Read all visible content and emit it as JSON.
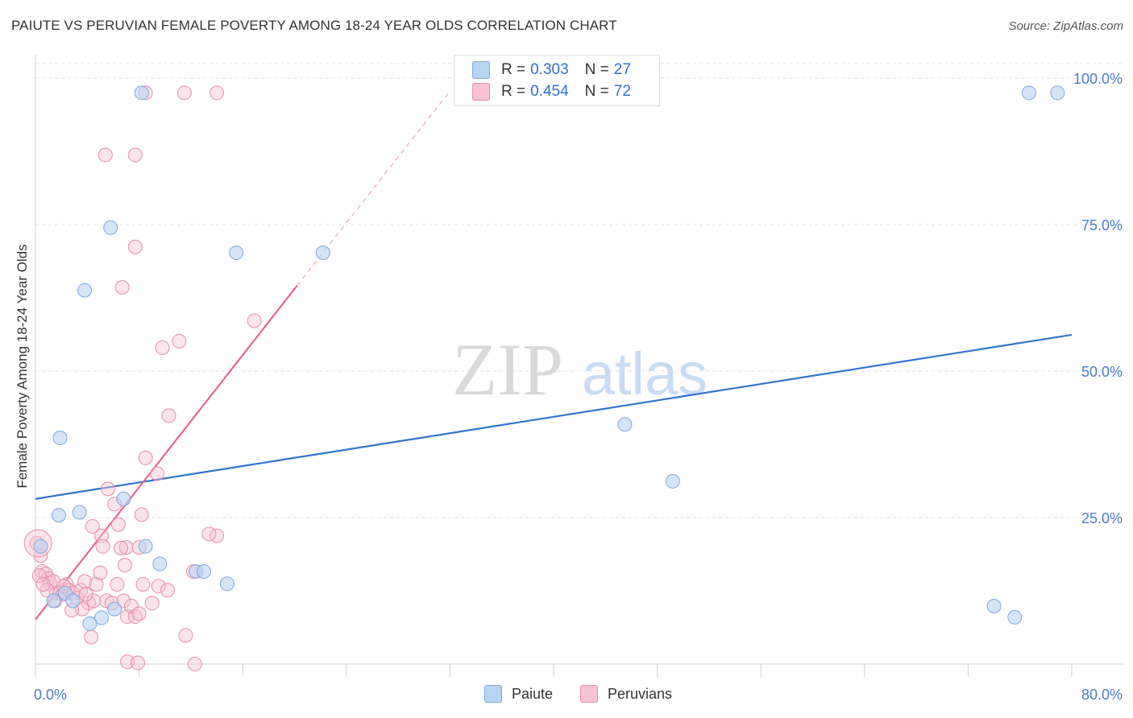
{
  "header": {
    "title": "PAIUTE VS PERUVIAN FEMALE POVERTY AMONG 18-24 YEAR OLDS CORRELATION CHART",
    "source": "Source: ZipAtlas.com"
  },
  "watermark": {
    "part1": "ZIP",
    "part2": "atlas"
  },
  "legend": {
    "rows": [
      {
        "r_label": "R =",
        "r_value": "0.303",
        "n_label": "N =",
        "n_value": "27"
      },
      {
        "r_label": "R =",
        "r_value": "0.454",
        "n_label": "N =",
        "n_value": "72"
      }
    ],
    "bottom": [
      "Paiute",
      "Peruvians"
    ]
  },
  "colors": {
    "paiute_fill": "#b8d4f5",
    "paiute_stroke": "#7fa8db",
    "paiute_line": "#2f74d0",
    "peruvian_fill": "#f7c3d3",
    "peruvian_stroke": "#e68daa",
    "peruvian_line": "#e5658f",
    "tick_text": "#4a7cc7"
  },
  "chart_data": {
    "type": "scatter",
    "title": "PAIUTE VS PERUVIAN FEMALE POVERTY AMONG 18-24 YEAR OLDS CORRELATION CHART",
    "xlabel": "",
    "ylabel": "Female Poverty Among 18-24 Year Olds",
    "xlim": [
      0,
      80
    ],
    "ylim": [
      0,
      104
    ],
    "x_tick_labels": [
      {
        "value": 0,
        "label": "0.0%"
      },
      {
        "value": 80,
        "label": "80.0%"
      }
    ],
    "y_tick_labels": [
      {
        "value": 25,
        "label": "25.0%"
      },
      {
        "value": 50,
        "label": "50.0%"
      },
      {
        "value": 75,
        "label": "75.0%"
      },
      {
        "value": 100,
        "label": "100.0%"
      }
    ],
    "series": [
      {
        "name": "Paiute",
        "r": 0.303,
        "n": 27,
        "trend": {
          "x": [
            0,
            80
          ],
          "y": [
            28.2,
            56.2
          ],
          "dashed_extension": false
        },
        "points": [
          [
            8.2,
            97.5
          ],
          [
            76.7,
            97.5
          ],
          [
            78.9,
            97.5
          ],
          [
            5.8,
            74.5
          ],
          [
            15.5,
            70.2
          ],
          [
            22.2,
            70.2
          ],
          [
            3.8,
            63.8
          ],
          [
            1.9,
            38.6
          ],
          [
            45.5,
            40.9
          ],
          [
            49.2,
            31.2
          ],
          [
            6.8,
            28.2
          ],
          [
            1.8,
            25.4
          ],
          [
            3.4,
            25.9
          ],
          [
            8.5,
            20.1
          ],
          [
            9.6,
            17.1
          ],
          [
            12.4,
            15.8
          ],
          [
            13.0,
            15.8
          ],
          [
            14.8,
            13.7
          ],
          [
            0.4,
            20.1
          ],
          [
            2.3,
            12.1
          ],
          [
            1.4,
            10.8
          ],
          [
            2.9,
            10.8
          ],
          [
            6.1,
            9.4
          ],
          [
            5.1,
            7.9
          ],
          [
            4.2,
            6.9
          ],
          [
            74.0,
            9.9
          ],
          [
            75.6,
            8.0
          ]
        ]
      },
      {
        "name": "Peruvians",
        "r": 0.454,
        "n": 72,
        "trend": {
          "x": [
            0,
            20.2
          ],
          "y": [
            7.6,
            64.6
          ],
          "dashed_to": [
            31.9,
            97.5
          ]
        },
        "points": [
          [
            8.5,
            97.5
          ],
          [
            11.5,
            97.5
          ],
          [
            14.0,
            97.5
          ],
          [
            5.4,
            86.9
          ],
          [
            7.7,
            86.9
          ],
          [
            7.7,
            71.2
          ],
          [
            6.7,
            64.3
          ],
          [
            16.9,
            58.6
          ],
          [
            9.8,
            54.0
          ],
          [
            11.1,
            55.1
          ],
          [
            10.3,
            42.4
          ],
          [
            8.5,
            35.2
          ],
          [
            9.4,
            32.5
          ],
          [
            5.6,
            29.9
          ],
          [
            6.1,
            27.3
          ],
          [
            8.2,
            25.5
          ],
          [
            6.4,
            23.8
          ],
          [
            4.4,
            23.5
          ],
          [
            5.1,
            21.9
          ],
          [
            7.0,
            19.9
          ],
          [
            8.0,
            19.9
          ],
          [
            14.0,
            21.9
          ],
          [
            6.9,
            16.9
          ],
          [
            0.1,
            20.6
          ],
          [
            0.4,
            18.5
          ],
          [
            0.5,
            15.8
          ],
          [
            0.8,
            15.4
          ],
          [
            1.0,
            14.6
          ],
          [
            1.1,
            13.8
          ],
          [
            1.4,
            14.1
          ],
          [
            1.6,
            12.1
          ],
          [
            1.9,
            12.1
          ],
          [
            2.1,
            11.9
          ],
          [
            2.4,
            13.6
          ],
          [
            2.6,
            12.6
          ],
          [
            2.9,
            12.1
          ],
          [
            3.2,
            11.3
          ],
          [
            3.5,
            12.6
          ],
          [
            3.8,
            14.1
          ],
          [
            4.1,
            10.4
          ],
          [
            4.5,
            10.8
          ],
          [
            4.7,
            13.6
          ],
          [
            5.0,
            15.6
          ],
          [
            5.5,
            10.8
          ],
          [
            5.9,
            10.4
          ],
          [
            6.3,
            13.6
          ],
          [
            6.8,
            10.8
          ],
          [
            7.1,
            8.1
          ],
          [
            7.4,
            9.9
          ],
          [
            7.7,
            8.1
          ],
          [
            8.0,
            8.6
          ],
          [
            8.3,
            13.6
          ],
          [
            9.0,
            10.4
          ],
          [
            9.5,
            13.3
          ],
          [
            10.2,
            12.6
          ],
          [
            11.6,
            4.9
          ],
          [
            12.2,
            15.8
          ],
          [
            2.2,
            13.3
          ],
          [
            3.6,
            9.4
          ],
          [
            4.3,
            4.6
          ],
          [
            7.1,
            0.4
          ],
          [
            7.9,
            0.2
          ],
          [
            12.3,
            0.0
          ],
          [
            3.9,
            11.9
          ],
          [
            2.8,
            9.2
          ],
          [
            1.5,
            10.8
          ],
          [
            0.9,
            12.6
          ],
          [
            0.3,
            15.1
          ],
          [
            0.6,
            13.6
          ],
          [
            13.4,
            22.2
          ],
          [
            6.6,
            19.8
          ],
          [
            5.2,
            20.1
          ]
        ]
      }
    ]
  }
}
